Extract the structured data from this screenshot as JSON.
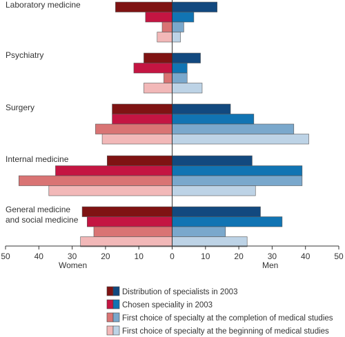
{
  "chart_data": {
    "type": "bar",
    "orientation": "horizontal",
    "layout": "butterfly",
    "categories": [
      {
        "lines": [
          "Laboratory medicine"
        ]
      },
      {
        "lines": [
          "Psychiatry"
        ]
      },
      {
        "lines": [
          "Surgery"
        ]
      },
      {
        "lines": [
          "Internal medicine"
        ]
      },
      {
        "lines": [
          "General medicine",
          "and social medicine"
        ]
      }
    ],
    "series": [
      {
        "name": "Distribution of specialists in 2003",
        "women_color": "#7f1313",
        "men_color": "#12497f",
        "women": [
          17,
          8.5,
          18,
          19.5,
          27
        ],
        "men": [
          13.5,
          8.5,
          17.5,
          24,
          26.5
        ]
      },
      {
        "name": "Chosen speciality in 2003",
        "women_color": "#c41542",
        "men_color": "#1174b3",
        "women": [
          8,
          11.5,
          18,
          35,
          25.5
        ],
        "men": [
          6.5,
          4.5,
          24.5,
          39,
          33
        ]
      },
      {
        "name": "First choice of specialty at the completion of medical studies",
        "women_color": "#d97474",
        "men_color": "#7aa8cc",
        "women": [
          3,
          2.5,
          23,
          46,
          23.5
        ],
        "men": [
          3.5,
          4.5,
          36.5,
          39,
          16
        ]
      },
      {
        "name": "First choice of specialty at the beginning of medical studies",
        "women_color": "#f2b8b8",
        "men_color": "#bdd3e6",
        "women": [
          4.5,
          8.5,
          21,
          37,
          27.5
        ],
        "men": [
          2.5,
          9,
          41,
          25,
          22.5
        ]
      }
    ],
    "x_range": [
      -50,
      50
    ],
    "x_ticks": [
      {
        "value": -50,
        "label": "50"
      },
      {
        "value": -40,
        "label": "40"
      },
      {
        "value": -30,
        "label": "30"
      },
      {
        "value": -20,
        "label": "20"
      },
      {
        "value": -10,
        "label": "10"
      },
      {
        "value": 0,
        "label": "0"
      },
      {
        "value": 10,
        "label": "10"
      },
      {
        "value": 20,
        "label": "20"
      },
      {
        "value": 30,
        "label": "30"
      },
      {
        "value": 40,
        "label": "40"
      },
      {
        "value": 50,
        "label": "50"
      }
    ],
    "left_label": "Women",
    "right_label": "Men",
    "legend_position": "bottom-center",
    "grid": false
  }
}
